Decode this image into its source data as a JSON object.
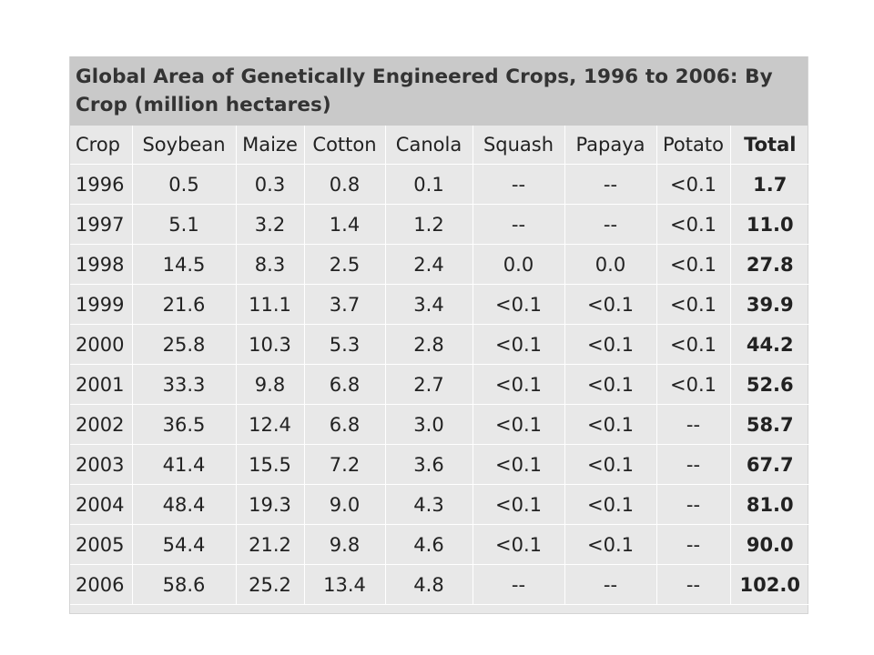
{
  "chart_data": {
    "type": "table",
    "title": "Global Area of Genetically Engineered Crops, 1996 to 2006: By Crop (million hectares)",
    "columns": [
      "Crop",
      "Soybean",
      "Maize",
      "Cotton",
      "Canola",
      "Squash",
      "Papaya",
      "Potato",
      "Total"
    ],
    "rows": [
      [
        "1996",
        "0.5",
        "0.3",
        "0.8",
        "0.1",
        "--",
        "--",
        "<0.1",
        "1.7"
      ],
      [
        "1997",
        "5.1",
        "3.2",
        "1.4",
        "1.2",
        "--",
        "--",
        "<0.1",
        "11.0"
      ],
      [
        "1998",
        "14.5",
        "8.3",
        "2.5",
        "2.4",
        "0.0",
        "0.0",
        "<0.1",
        "27.8"
      ],
      [
        "1999",
        "21.6",
        "11.1",
        "3.7",
        "3.4",
        "<0.1",
        "<0.1",
        "<0.1",
        "39.9"
      ],
      [
        "2000",
        "25.8",
        "10.3",
        "5.3",
        "2.8",
        "<0.1",
        "<0.1",
        "<0.1",
        "44.2"
      ],
      [
        "2001",
        "33.3",
        "9.8",
        "6.8",
        "2.7",
        "<0.1",
        "<0.1",
        "<0.1",
        "52.6"
      ],
      [
        "2002",
        "36.5",
        "12.4",
        "6.8",
        "3.0",
        "<0.1",
        "<0.1",
        "--",
        "58.7"
      ],
      [
        "2003",
        "41.4",
        "15.5",
        "7.2",
        "3.6",
        "<0.1",
        "<0.1",
        "--",
        "67.7"
      ],
      [
        "2004",
        "48.4",
        "19.3",
        "9.0",
        "4.3",
        "<0.1",
        "<0.1",
        "--",
        "81.0"
      ],
      [
        "2005",
        "54.4",
        "21.2",
        "9.8",
        "4.6",
        "<0.1",
        "<0.1",
        "--",
        "90.0"
      ],
      [
        "2006",
        "58.6",
        "25.2",
        "13.4",
        "4.8",
        "--",
        "--",
        "--",
        "102.0"
      ]
    ]
  }
}
